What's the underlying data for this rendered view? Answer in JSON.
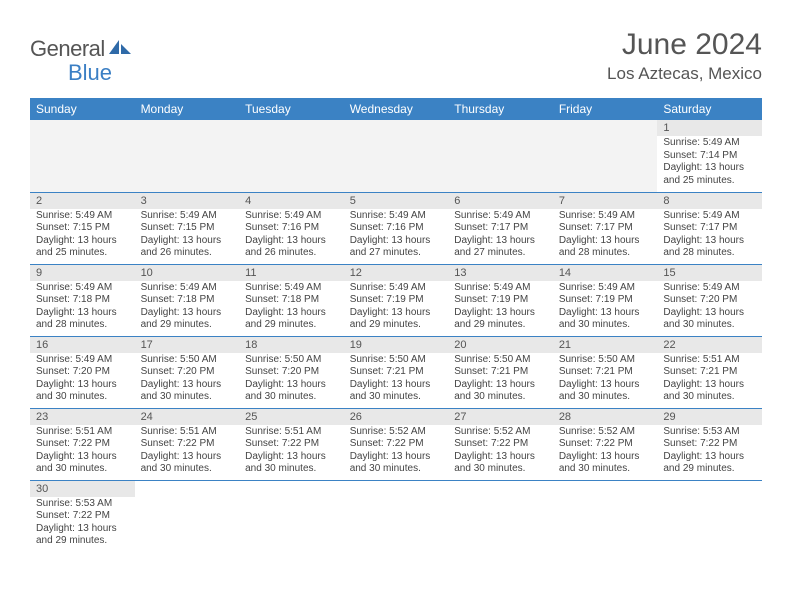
{
  "logo": {
    "general": "General",
    "blue": "Blue"
  },
  "title": "June 2024",
  "location": "Los Aztecas, Mexico",
  "colors": {
    "headerBg": "#3b82c4",
    "headerText": "#ffffff",
    "daynumBg": "#e8e8e8",
    "rowBorder": "#3b82c4",
    "logoBlue": "#3b7fc4",
    "text": "#444444"
  },
  "dayNames": [
    "Sunday",
    "Monday",
    "Tuesday",
    "Wednesday",
    "Thursday",
    "Friday",
    "Saturday"
  ],
  "weeks": [
    [
      null,
      null,
      null,
      null,
      null,
      null,
      {
        "n": "1",
        "sr": "Sunrise: 5:49 AM",
        "ss": "Sunset: 7:14 PM",
        "d1": "Daylight: 13 hours",
        "d2": "and 25 minutes."
      }
    ],
    [
      {
        "n": "2",
        "sr": "Sunrise: 5:49 AM",
        "ss": "Sunset: 7:15 PM",
        "d1": "Daylight: 13 hours",
        "d2": "and 25 minutes."
      },
      {
        "n": "3",
        "sr": "Sunrise: 5:49 AM",
        "ss": "Sunset: 7:15 PM",
        "d1": "Daylight: 13 hours",
        "d2": "and 26 minutes."
      },
      {
        "n": "4",
        "sr": "Sunrise: 5:49 AM",
        "ss": "Sunset: 7:16 PM",
        "d1": "Daylight: 13 hours",
        "d2": "and 26 minutes."
      },
      {
        "n": "5",
        "sr": "Sunrise: 5:49 AM",
        "ss": "Sunset: 7:16 PM",
        "d1": "Daylight: 13 hours",
        "d2": "and 27 minutes."
      },
      {
        "n": "6",
        "sr": "Sunrise: 5:49 AM",
        "ss": "Sunset: 7:17 PM",
        "d1": "Daylight: 13 hours",
        "d2": "and 27 minutes."
      },
      {
        "n": "7",
        "sr": "Sunrise: 5:49 AM",
        "ss": "Sunset: 7:17 PM",
        "d1": "Daylight: 13 hours",
        "d2": "and 28 minutes."
      },
      {
        "n": "8",
        "sr": "Sunrise: 5:49 AM",
        "ss": "Sunset: 7:17 PM",
        "d1": "Daylight: 13 hours",
        "d2": "and 28 minutes."
      }
    ],
    [
      {
        "n": "9",
        "sr": "Sunrise: 5:49 AM",
        "ss": "Sunset: 7:18 PM",
        "d1": "Daylight: 13 hours",
        "d2": "and 28 minutes."
      },
      {
        "n": "10",
        "sr": "Sunrise: 5:49 AM",
        "ss": "Sunset: 7:18 PM",
        "d1": "Daylight: 13 hours",
        "d2": "and 29 minutes."
      },
      {
        "n": "11",
        "sr": "Sunrise: 5:49 AM",
        "ss": "Sunset: 7:18 PM",
        "d1": "Daylight: 13 hours",
        "d2": "and 29 minutes."
      },
      {
        "n": "12",
        "sr": "Sunrise: 5:49 AM",
        "ss": "Sunset: 7:19 PM",
        "d1": "Daylight: 13 hours",
        "d2": "and 29 minutes."
      },
      {
        "n": "13",
        "sr": "Sunrise: 5:49 AM",
        "ss": "Sunset: 7:19 PM",
        "d1": "Daylight: 13 hours",
        "d2": "and 29 minutes."
      },
      {
        "n": "14",
        "sr": "Sunrise: 5:49 AM",
        "ss": "Sunset: 7:19 PM",
        "d1": "Daylight: 13 hours",
        "d2": "and 30 minutes."
      },
      {
        "n": "15",
        "sr": "Sunrise: 5:49 AM",
        "ss": "Sunset: 7:20 PM",
        "d1": "Daylight: 13 hours",
        "d2": "and 30 minutes."
      }
    ],
    [
      {
        "n": "16",
        "sr": "Sunrise: 5:49 AM",
        "ss": "Sunset: 7:20 PM",
        "d1": "Daylight: 13 hours",
        "d2": "and 30 minutes."
      },
      {
        "n": "17",
        "sr": "Sunrise: 5:50 AM",
        "ss": "Sunset: 7:20 PM",
        "d1": "Daylight: 13 hours",
        "d2": "and 30 minutes."
      },
      {
        "n": "18",
        "sr": "Sunrise: 5:50 AM",
        "ss": "Sunset: 7:20 PM",
        "d1": "Daylight: 13 hours",
        "d2": "and 30 minutes."
      },
      {
        "n": "19",
        "sr": "Sunrise: 5:50 AM",
        "ss": "Sunset: 7:21 PM",
        "d1": "Daylight: 13 hours",
        "d2": "and 30 minutes."
      },
      {
        "n": "20",
        "sr": "Sunrise: 5:50 AM",
        "ss": "Sunset: 7:21 PM",
        "d1": "Daylight: 13 hours",
        "d2": "and 30 minutes."
      },
      {
        "n": "21",
        "sr": "Sunrise: 5:50 AM",
        "ss": "Sunset: 7:21 PM",
        "d1": "Daylight: 13 hours",
        "d2": "and 30 minutes."
      },
      {
        "n": "22",
        "sr": "Sunrise: 5:51 AM",
        "ss": "Sunset: 7:21 PM",
        "d1": "Daylight: 13 hours",
        "d2": "and 30 minutes."
      }
    ],
    [
      {
        "n": "23",
        "sr": "Sunrise: 5:51 AM",
        "ss": "Sunset: 7:22 PM",
        "d1": "Daylight: 13 hours",
        "d2": "and 30 minutes."
      },
      {
        "n": "24",
        "sr": "Sunrise: 5:51 AM",
        "ss": "Sunset: 7:22 PM",
        "d1": "Daylight: 13 hours",
        "d2": "and 30 minutes."
      },
      {
        "n": "25",
        "sr": "Sunrise: 5:51 AM",
        "ss": "Sunset: 7:22 PM",
        "d1": "Daylight: 13 hours",
        "d2": "and 30 minutes."
      },
      {
        "n": "26",
        "sr": "Sunrise: 5:52 AM",
        "ss": "Sunset: 7:22 PM",
        "d1": "Daylight: 13 hours",
        "d2": "and 30 minutes."
      },
      {
        "n": "27",
        "sr": "Sunrise: 5:52 AM",
        "ss": "Sunset: 7:22 PM",
        "d1": "Daylight: 13 hours",
        "d2": "and 30 minutes."
      },
      {
        "n": "28",
        "sr": "Sunrise: 5:52 AM",
        "ss": "Sunset: 7:22 PM",
        "d1": "Daylight: 13 hours",
        "d2": "and 30 minutes."
      },
      {
        "n": "29",
        "sr": "Sunrise: 5:53 AM",
        "ss": "Sunset: 7:22 PM",
        "d1": "Daylight: 13 hours",
        "d2": "and 29 minutes."
      }
    ],
    [
      {
        "n": "30",
        "sr": "Sunrise: 5:53 AM",
        "ss": "Sunset: 7:22 PM",
        "d1": "Daylight: 13 hours",
        "d2": "and 29 minutes."
      },
      null,
      null,
      null,
      null,
      null,
      null
    ]
  ]
}
